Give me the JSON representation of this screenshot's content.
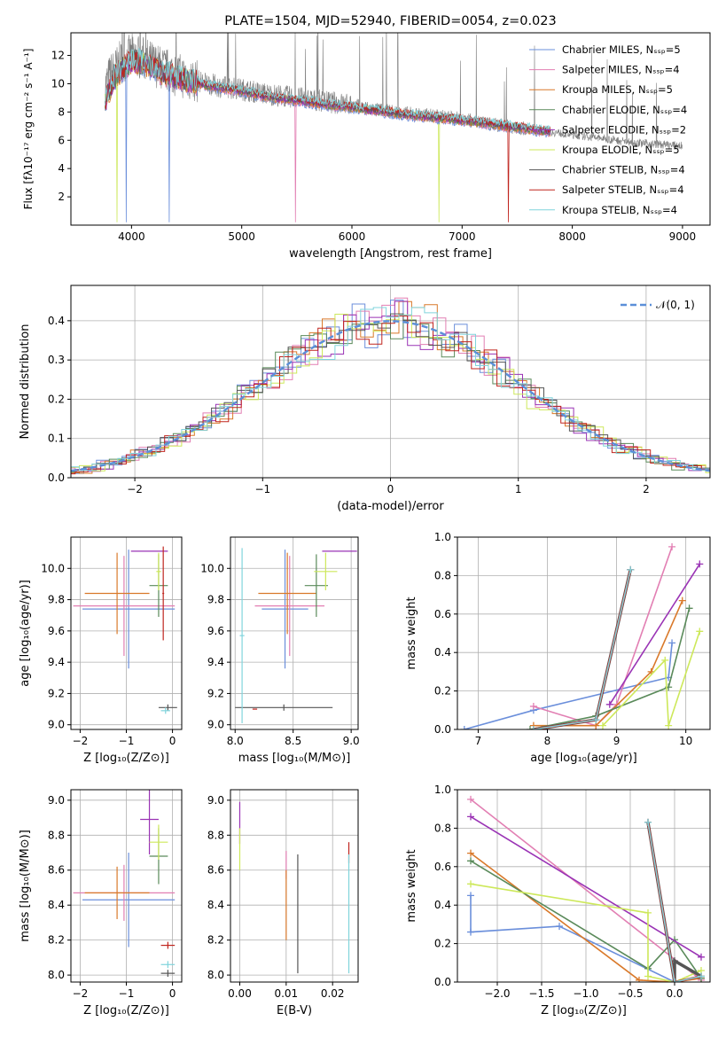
{
  "colors": [
    "#6b8fdb",
    "#e27fb3",
    "#d9792a",
    "#5a8a5a",
    "#9a33b5",
    "#cde85a",
    "#555555",
    "#c0251f",
    "#80d4dc"
  ],
  "chart_data": [
    {
      "id": "spectrum",
      "type": "line",
      "title": "PLATE=1504, MJD=52940, FIBERID=0054, z=0.023",
      "xlabel": "wavelength [Angstrom, rest frame]",
      "ylabel": "Flux [fλ10⁻¹⁷ erg cm⁻² s⁻¹ A⁻¹]",
      "xlim": [
        3450,
        9250
      ],
      "ylim": [
        0,
        13.6
      ],
      "xticks": [
        4000,
        5000,
        6000,
        7000,
        8000,
        9000
      ],
      "yticks": [
        2,
        4,
        6,
        8,
        10,
        12
      ],
      "legend_position": "top-right",
      "legend": [
        "Chabrier MILES, N_SSP=5",
        "Salpeter MILES, N_SSP=4",
        "Kroupa MILES, N_SSP=5",
        "Chabrier ELODIE, N_SSP=4",
        "Salpeter ELODIE, N_SSP=2",
        "Kroupa ELODIE, N_SSP=5",
        "Chabrier STELIB, N_SSP=4",
        "Salpeter STELIB, N_SSP=4",
        "Kroupa STELIB, N_SSP=4"
      ],
      "data_curve": {
        "x": [
          3750,
          3800,
          3900,
          4000,
          4100,
          4200,
          4300,
          4500,
          4800,
          5000,
          5200,
          5500,
          5800,
          6000,
          6200,
          6500,
          6800,
          7000,
          7300,
          7600,
          7800,
          8000,
          8300,
          8600,
          8800,
          9000
        ],
        "y": [
          9.5,
          10.5,
          11.5,
          12.0,
          11.8,
          11.4,
          11.0,
          10.4,
          9.8,
          9.6,
          9.3,
          9.0,
          8.7,
          8.5,
          8.2,
          7.9,
          7.7,
          7.5,
          7.1,
          6.8,
          6.6,
          6.4,
          6.1,
          5.8,
          5.7,
          5.6
        ]
      },
      "model_curve": {
        "x": [
          3750,
          3850,
          4000,
          4100,
          4300,
          4500,
          4800,
          5000,
          5200,
          5500,
          6000,
          6500,
          7000,
          7500,
          7800
        ],
        "y": [
          8.5,
          10.5,
          11.6,
          11.5,
          10.7,
          10.2,
          9.7,
          9.5,
          9.1,
          8.8,
          8.3,
          7.8,
          7.4,
          6.9,
          6.6
        ]
      }
    },
    {
      "id": "residuals",
      "type": "line",
      "xlabel": "(data-model)/error",
      "ylabel": "Normed distribution",
      "xlim": [
        -2.5,
        2.5
      ],
      "ylim": [
        0,
        0.49
      ],
      "xticks": [
        -2,
        -1,
        0,
        1,
        2
      ],
      "yticks": [
        0.0,
        0.1,
        0.2,
        0.3,
        0.4
      ],
      "legend": [
        "𝒩(0, 1)"
      ],
      "gaussian": {
        "mean": 0,
        "sigma": 1
      }
    },
    {
      "id": "age-vs-z",
      "type": "scatter",
      "xlabel": "Z [log₁₀(Z/Z⊙)]",
      "ylabel": "age  [log₁₀(age/yr)]",
      "xlim": [
        -2.2,
        0.2
      ],
      "ylim": [
        8.97,
        10.2
      ],
      "xticks": [
        -2,
        -1,
        0
      ],
      "yticks": [
        9.0,
        9.2,
        9.4,
        9.6,
        9.8,
        10.0
      ],
      "points": [
        {
          "x": -0.95,
          "y": 9.74,
          "xerr": 1.0,
          "yerr": 0.38,
          "c": 0
        },
        {
          "x": -1.05,
          "y": 9.76,
          "xerr": 1.1,
          "yerr": 0.32,
          "c": 1
        },
        {
          "x": -1.2,
          "y": 9.84,
          "xerr": 0.7,
          "yerr": 0.26,
          "c": 2
        },
        {
          "x": -0.3,
          "y": 9.89,
          "xerr": 0.2,
          "yerr": 0.2,
          "c": 3
        },
        {
          "x": -0.5,
          "y": 10.11,
          "xerr": 0.4,
          "yerr": 0.0,
          "c": 4
        },
        {
          "x": -0.3,
          "y": 9.98,
          "xerr": 0.05,
          "yerr": 0.12,
          "c": 5
        },
        {
          "x": -0.1,
          "y": 9.11,
          "xerr": 0.2,
          "yerr": 0.02,
          "c": 6
        },
        {
          "x": -0.2,
          "y": 9.84,
          "xerr": 0.02,
          "yerr": 0.3,
          "c": 7
        },
        {
          "x": -0.15,
          "y": 9.09,
          "xerr": 0.1,
          "yerr": 0.02,
          "c": 8
        }
      ]
    },
    {
      "id": "age-vs-mass",
      "type": "scatter",
      "xlabel": "mass [log₁₀(M/M⊙)]",
      "ylabel": "",
      "xlim": [
        7.96,
        9.06
      ],
      "ylim": [
        8.97,
        10.2
      ],
      "xticks": [
        8.0,
        8.5,
        9.0
      ],
      "yticks": [
        9.0,
        9.2,
        9.4,
        9.6,
        9.8,
        10.0
      ],
      "points": [
        {
          "x": 8.43,
          "y": 9.74,
          "xerr": 0.2,
          "yerr": 0.38,
          "c": 0
        },
        {
          "x": 8.47,
          "y": 9.76,
          "xerr": 0.3,
          "yerr": 0.32,
          "c": 1
        },
        {
          "x": 8.45,
          "y": 9.84,
          "xerr": 0.25,
          "yerr": 0.26,
          "c": 2
        },
        {
          "x": 8.7,
          "y": 9.89,
          "xerr": 0.1,
          "yerr": 0.2,
          "c": 3
        },
        {
          "x": 8.9,
          "y": 10.11,
          "xerr": 0.15,
          "yerr": 0.0,
          "c": 4
        },
        {
          "x": 8.78,
          "y": 9.98,
          "xerr": 0.1,
          "yerr": 0.12,
          "c": 5
        },
        {
          "x": 8.42,
          "y": 9.11,
          "xerr": 0.42,
          "yerr": 0.02,
          "c": 6
        },
        {
          "x": 8.17,
          "y": 9.1,
          "xerr": 0.02,
          "yerr": 0.0,
          "c": 7
        },
        {
          "x": 8.06,
          "y": 9.57,
          "xerr": 0.02,
          "yerr": 0.56,
          "c": 8
        }
      ]
    },
    {
      "id": "mass-weight-vs-age",
      "type": "line",
      "xlabel": "age  [log₁₀(age/yr)]",
      "ylabel": "mass weight",
      "xlim": [
        6.7,
        10.35
      ],
      "ylim": [
        0.0,
        1.0
      ],
      "xticks": [
        7,
        8,
        9,
        10
      ],
      "yticks": [
        0.0,
        0.2,
        0.4,
        0.6,
        0.8,
        1.0
      ],
      "series": [
        {
          "x": [
            6.8,
            7.8,
            9.75,
            9.8
          ],
          "y": [
            0.0,
            0.1,
            0.27,
            0.45
          ],
          "c": 0
        },
        {
          "x": [
            7.8,
            8.7,
            9.0,
            9.8
          ],
          "y": [
            0.12,
            0.02,
            0.13,
            0.95
          ],
          "c": 1
        },
        {
          "x": [
            7.8,
            8.7,
            9.5,
            9.95
          ],
          "y": [
            0.02,
            0.02,
            0.3,
            0.67
          ],
          "c": 2
        },
        {
          "x": [
            7.75,
            8.7,
            9.75,
            10.05
          ],
          "y": [
            0.0,
            0.07,
            0.22,
            0.63
          ],
          "c": 3
        },
        {
          "x": [
            8.9,
            10.2
          ],
          "y": [
            0.13,
            0.86
          ],
          "c": 4
        },
        {
          "x": [
            8.8,
            9.7,
            9.75,
            10.2
          ],
          "y": [
            0.02,
            0.36,
            0.02,
            0.51
          ],
          "c": 5
        },
        {
          "x": [
            7.8,
            8.7,
            9.2
          ],
          "y": [
            0.0,
            0.05,
            0.83
          ],
          "c": 6
        },
        {
          "x": [
            7.8,
            8.7,
            9.2
          ],
          "y": [
            0.0,
            0.05,
            0.83
          ],
          "c": 7
        },
        {
          "x": [
            7.8,
            8.7,
            9.2
          ],
          "y": [
            0.0,
            0.05,
            0.83
          ],
          "c": 8
        }
      ]
    },
    {
      "id": "mass-vs-z",
      "type": "scatter",
      "xlabel": "Z [log₁₀(Z/Z⊙)]",
      "ylabel": "mass [log₁₀(M/M⊙)]",
      "xlim": [
        -2.2,
        0.2
      ],
      "ylim": [
        7.96,
        9.06
      ],
      "xticks": [
        -2,
        -1,
        0
      ],
      "yticks": [
        8.0,
        8.2,
        8.4,
        8.6,
        8.8,
        9.0
      ],
      "points": [
        {
          "x": -0.95,
          "y": 8.43,
          "xerr": 1.0,
          "yerr": 0.27,
          "c": 0
        },
        {
          "x": -1.05,
          "y": 8.47,
          "xerr": 1.1,
          "yerr": 0.16,
          "c": 1
        },
        {
          "x": -1.2,
          "y": 8.47,
          "xerr": 0.7,
          "yerr": 0.15,
          "c": 2
        },
        {
          "x": -0.3,
          "y": 8.68,
          "xerr": 0.2,
          "yerr": 0.16,
          "c": 3
        },
        {
          "x": -0.5,
          "y": 8.89,
          "xerr": 0.2,
          "yerr": 0.2,
          "c": 4
        },
        {
          "x": -0.3,
          "y": 8.76,
          "xerr": 0.2,
          "yerr": 0.1,
          "c": 5
        },
        {
          "x": -0.1,
          "y": 8.01,
          "xerr": 0.15,
          "yerr": 0.02,
          "c": 6
        },
        {
          "x": -0.1,
          "y": 8.17,
          "xerr": 0.15,
          "yerr": 0.02,
          "c": 7
        },
        {
          "x": -0.1,
          "y": 8.06,
          "xerr": 0.15,
          "yerr": 0.02,
          "c": 8
        }
      ]
    },
    {
      "id": "mass-vs-ebv",
      "type": "scatter",
      "xlabel": "E(B-V)",
      "ylabel": "",
      "xlim": [
        -0.002,
        0.0255
      ],
      "ylim": [
        7.96,
        9.06
      ],
      "xticks": [
        0.0,
        0.01,
        0.02
      ],
      "yticks": [
        8.0,
        8.2,
        8.4,
        8.6,
        8.8,
        9.0
      ],
      "points": [
        {
          "x": 0.0,
          "y": 8.87,
          "xerr": 0.0,
          "yerr": 0.12,
          "c": 4
        },
        {
          "x": 0.0,
          "y": 8.72,
          "xerr": 0.0,
          "yerr": 0.12,
          "c": 5
        },
        {
          "x": 0.01,
          "y": 8.63,
          "xerr": 0.0,
          "yerr": 0.08,
          "c": 1
        },
        {
          "x": 0.01,
          "y": 8.4,
          "xerr": 0.0,
          "yerr": 0.2,
          "c": 2
        },
        {
          "x": 0.0125,
          "y": 8.35,
          "xerr": 0.0,
          "yerr": 0.34,
          "c": 6
        },
        {
          "x": 0.0235,
          "y": 8.7,
          "xerr": 0.0,
          "yerr": 0.06,
          "c": 7
        },
        {
          "x": 0.0235,
          "y": 8.35,
          "xerr": 0.0,
          "yerr": 0.34,
          "c": 8
        }
      ]
    },
    {
      "id": "mass-weight-vs-z",
      "type": "line",
      "xlabel": "Z [log₁₀(Z/Z⊙)]",
      "ylabel": "mass weight",
      "xlim": [
        -2.45,
        0.4
      ],
      "ylim": [
        0.0,
        1.0
      ],
      "xticks": [
        -2.0,
        -1.5,
        -1.0,
        -0.5,
        0.0
      ],
      "yticks": [
        0.0,
        0.2,
        0.4,
        0.6,
        0.8,
        1.0
      ],
      "series": [
        {
          "x": [
            -2.3,
            -2.3,
            -1.3,
            0.0
          ],
          "y": [
            0.45,
            0.26,
            0.29,
            0.0
          ],
          "c": 0
        },
        {
          "x": [
            -2.3,
            0.3
          ],
          "y": [
            0.95,
            0.01
          ],
          "c": 1
        },
        {
          "x": [
            -2.3,
            -0.4,
            0.0,
            0.3
          ],
          "y": [
            0.67,
            0.01,
            0.0,
            0.02
          ],
          "c": 2
        },
        {
          "x": [
            -2.3,
            -0.3,
            0.0,
            0.3
          ],
          "y": [
            0.63,
            0.07,
            0.22,
            0.02
          ],
          "c": 3
        },
        {
          "x": [
            -2.3,
            0.3
          ],
          "y": [
            0.86,
            0.13
          ],
          "c": 4
        },
        {
          "x": [
            -2.3,
            -0.3,
            -0.3,
            0.0,
            0.3
          ],
          "y": [
            0.51,
            0.36,
            0.03,
            0.0,
            0.06
          ],
          "c": 5
        },
        {
          "x": [
            -0.3,
            0.0,
            0.0,
            0.3
          ],
          "y": [
            0.83,
            0.0,
            0.11,
            0.03
          ],
          "c": 6
        },
        {
          "x": [
            -0.3,
            0.0,
            0.3
          ],
          "y": [
            0.83,
            0.0,
            0.03
          ],
          "c": 7
        },
        {
          "x": [
            -0.3,
            0.0,
            0.3
          ],
          "y": [
            0.83,
            0.0,
            0.03
          ],
          "c": 8
        }
      ]
    }
  ]
}
